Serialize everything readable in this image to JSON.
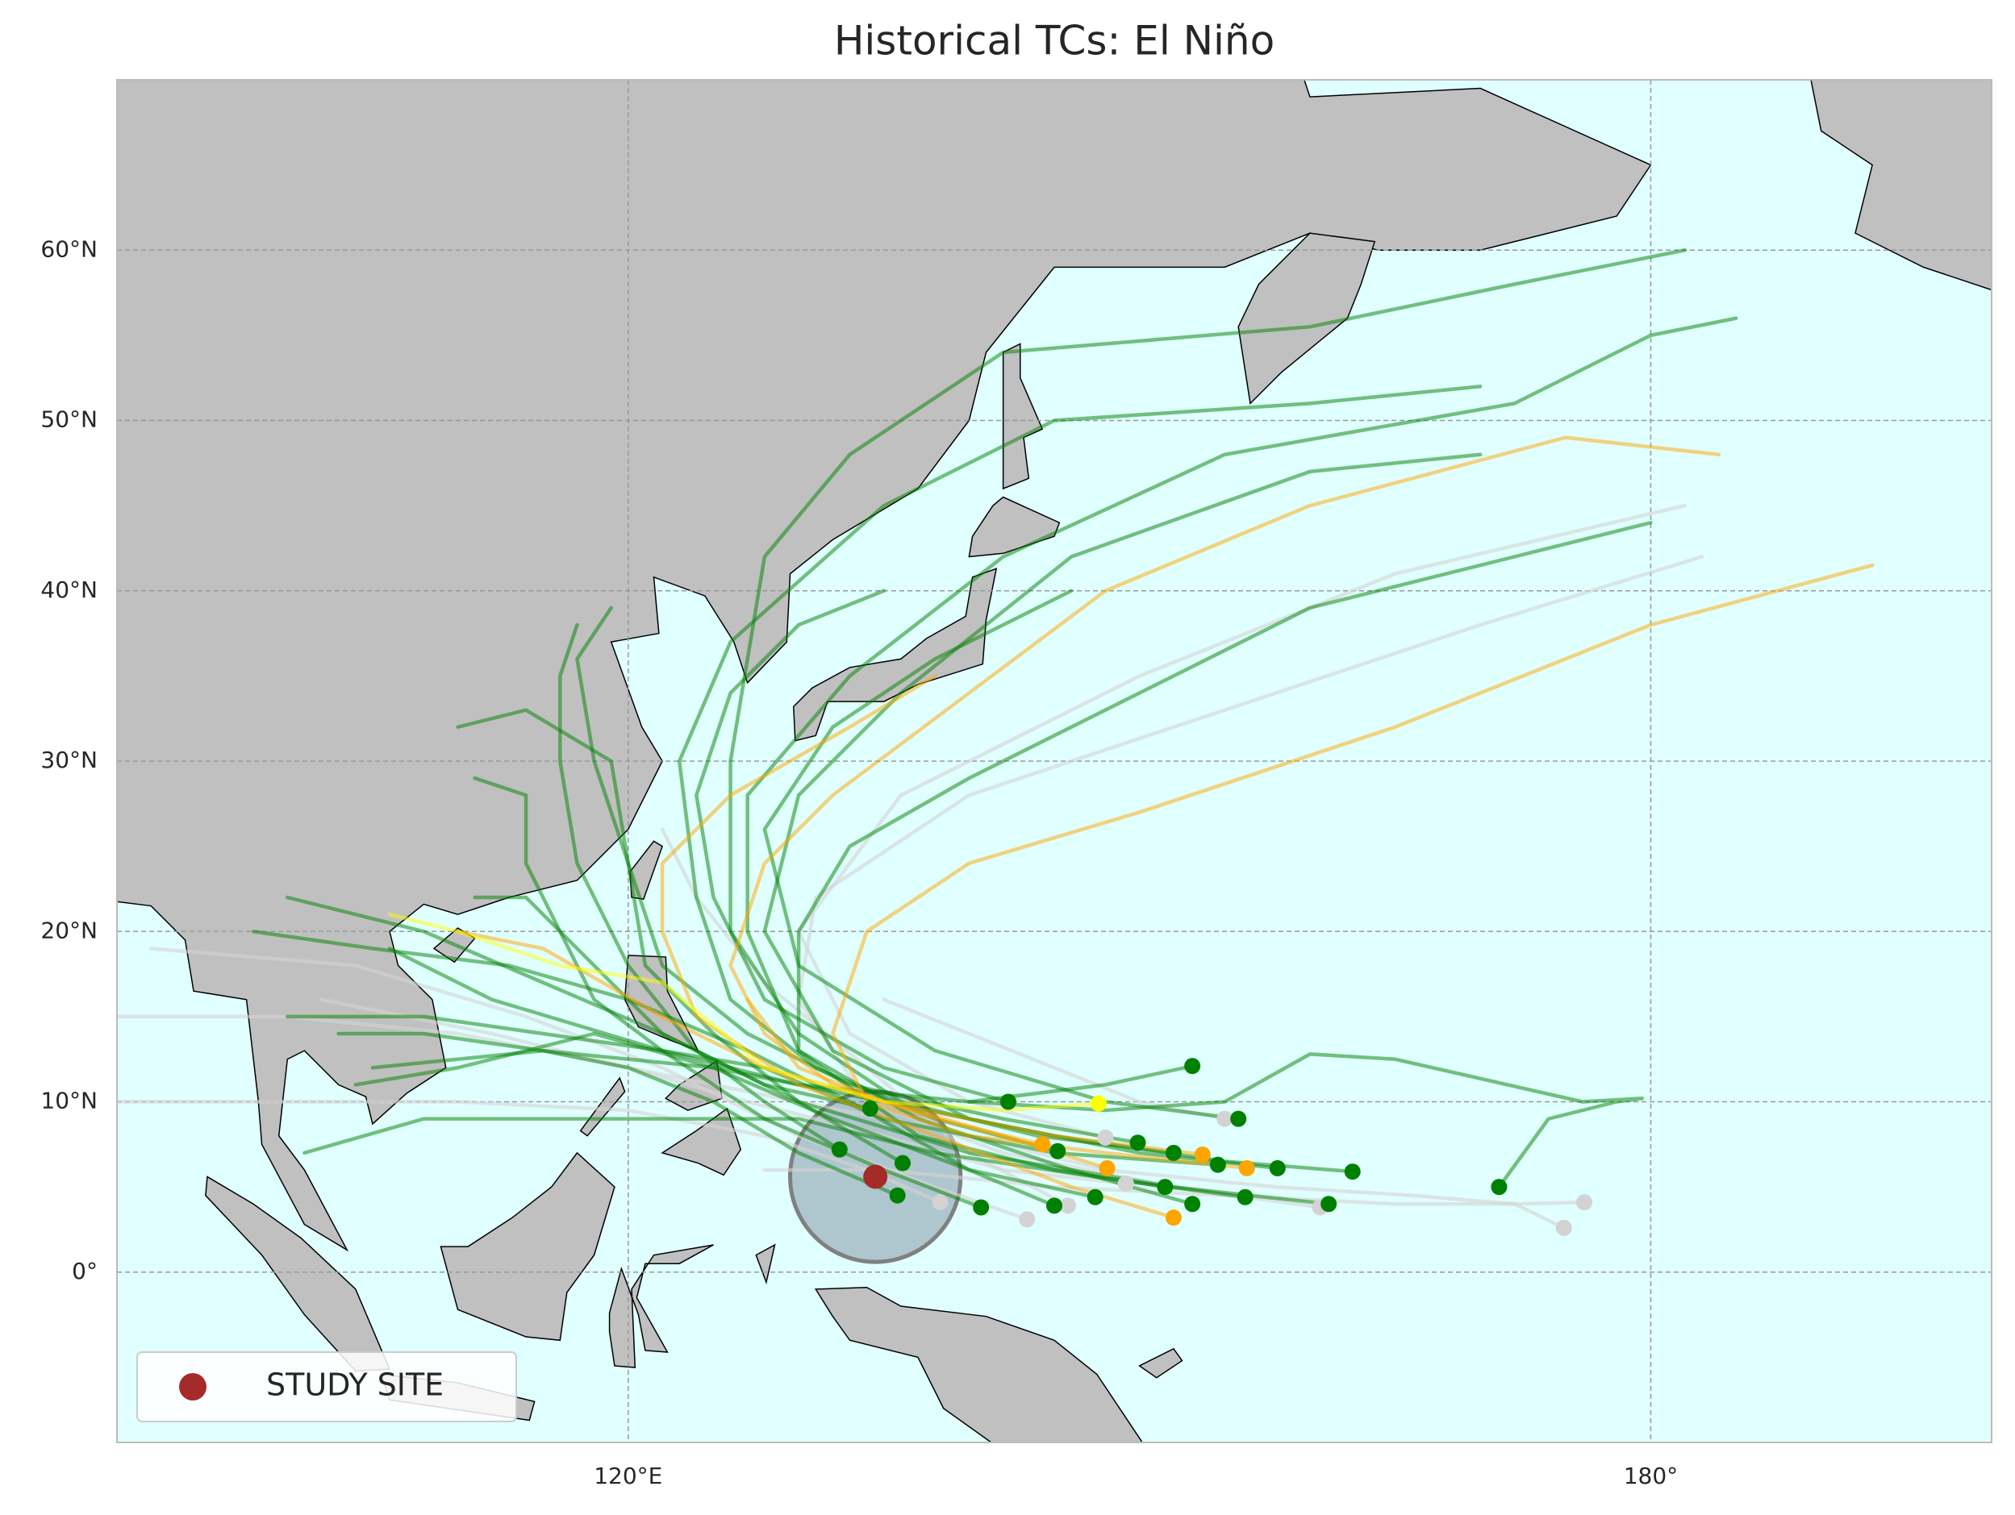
{
  "map_data": {
    "type": "track-map",
    "title": "Historical TCs: El Niño",
    "xlim": [
      90,
      200
    ],
    "ylim": [
      -10,
      70
    ],
    "xticks": [
      {
        "value": 120,
        "label": "120°E"
      },
      {
        "value": 180,
        "label": "180°"
      }
    ],
    "yticks": [
      {
        "value": 0,
        "label": "0°"
      },
      {
        "value": 10,
        "label": "10°N"
      },
      {
        "value": 20,
        "label": "20°N"
      },
      {
        "value": 30,
        "label": "30°N"
      },
      {
        "value": 40,
        "label": "40°N"
      },
      {
        "value": 50,
        "label": "50°N"
      },
      {
        "value": 60,
        "label": "60°N"
      }
    ],
    "grid": true,
    "ocean_color": "#e0ffff",
    "land_color": "#c0c0c0",
    "legend_position": "lower left",
    "study_site": {
      "label": "STUDY SITE",
      "lon": 134.5,
      "lat": 5.6,
      "radius_deg": 5,
      "color": "#a52a2a"
    },
    "tracks": [
      {
        "color": "#d3d3d3",
        "lon": [
          174.9,
          172,
          166,
          158,
          148,
          140,
          130,
          120,
          110,
          100,
          90
        ],
        "lat": [
          2.6,
          4,
          4.5,
          5,
          6,
          8,
          10,
          12,
          14,
          15,
          15
        ]
      },
      {
        "color": "#d3d3d3",
        "lon": [
          176.1,
          172,
          165,
          155,
          145,
          135,
          128
        ],
        "lat": [
          4.1,
          4,
          4,
          4.5,
          5,
          6,
          6
        ]
      },
      {
        "color": "#d3d3d3",
        "lon": [
          160.6,
          152,
          142,
          134,
          130,
          131,
          140,
          155,
          170,
          183
        ],
        "lat": [
          3.8,
          5,
          7,
          10,
          16,
          22,
          28,
          33,
          38,
          42
        ]
      },
      {
        "color": "#d3d3d3",
        "lon": [
          143.4,
          138,
          130,
          122,
          114,
          104,
          92
        ],
        "lat": [
          3.1,
          5,
          8,
          12,
          15,
          18,
          19
        ]
      },
      {
        "color": "#d3d3d3",
        "lon": [
          145.8,
          140,
          134,
          128,
          124,
          122
        ],
        "lat": [
          3.9,
          7,
          12,
          17,
          22,
          26
        ]
      },
      {
        "color": "#d3d3d3",
        "lon": [
          138.3,
          134,
          128,
          120,
          110,
          100,
          90
        ],
        "lat": [
          4.1,
          6,
          8,
          9.5,
          10,
          10,
          10
        ]
      },
      {
        "color": "#d3d3d3",
        "lon": [
          155.0,
          150,
          145,
          140,
          135
        ],
        "lat": [
          9.0,
          10,
          12,
          14,
          16
        ]
      },
      {
        "color": "#d3d3d3",
        "lon": [
          148.0,
          140,
          133,
          130,
          136,
          150,
          165,
          182
        ],
        "lat": [
          7.9,
          10,
          14,
          20,
          28,
          35,
          41,
          45
        ]
      },
      {
        "color": "#d3d3d3",
        "lon": [
          149.2,
          142,
          135,
          127,
          120,
          112,
          102
        ],
        "lat": [
          5.2,
          6,
          8,
          10,
          12,
          14,
          16
        ]
      },
      {
        "color": "#008000",
        "lon": [
          153.1,
          148,
          140,
          130,
          122,
          112,
          106
        ],
        "lat": [
          12.1,
          11,
          10,
          11,
          13,
          16,
          19
        ]
      },
      {
        "color": "#008000",
        "lon": [
          134.2,
          128,
          122,
          118,
          114,
          111
        ],
        "lat": [
          9.6,
          11,
          14,
          18,
          22,
          22
        ]
      },
      {
        "color": "#008000",
        "lon": [
          142.3,
          135,
          128,
          125,
          124,
          126,
          130,
          135
        ],
        "lat": [
          10.0,
          12,
          16,
          22,
          28,
          34,
          38,
          40
        ]
      },
      {
        "color": "#008000",
        "lon": [
          155.8,
          148,
          138,
          130,
          128,
          132,
          138,
          146
        ],
        "lat": [
          9.0,
          10,
          13,
          18,
          26,
          32,
          36,
          40
        ]
      },
      {
        "color": "#008000",
        "lon": [
          162.5,
          155,
          145,
          135,
          125,
          115,
          105
        ],
        "lat": [
          5.9,
          6.5,
          8,
          10,
          12,
          13,
          12
        ]
      },
      {
        "color": "#008000",
        "lon": [
          171.1,
          174,
          178,
          179.5,
          176,
          165,
          160,
          155,
          148,
          140
        ],
        "lat": [
          5.0,
          9,
          10,
          10.2,
          10,
          12.5,
          12.8,
          10,
          9.5,
          10
        ]
      },
      {
        "color": "#008000",
        "lon": [
          158.1,
          150,
          140,
          132,
          128,
          130,
          136,
          146,
          160,
          170
        ],
        "lat": [
          6.1,
          7,
          9,
          13,
          20,
          28,
          34,
          42,
          47,
          48
        ]
      },
      {
        "color": "#008000",
        "lon": [
          161.1,
          152,
          140,
          130,
          122,
          115,
          108,
          100
        ],
        "lat": [
          4.0,
          5,
          7,
          10,
          14,
          17,
          20,
          22
        ]
      },
      {
        "color": "#008000",
        "lon": [
          151.5,
          145,
          137,
          130,
          127,
          127,
          133,
          142,
          155,
          172,
          180,
          185
        ],
        "lat": [
          5.0,
          6,
          8,
          13,
          20,
          28,
          35,
          42,
          48,
          51,
          55,
          56
        ]
      },
      {
        "color": "#008000",
        "lon": [
          147.4,
          140,
          132,
          125,
          118,
          110,
          104
        ],
        "lat": [
          4.4,
          6,
          9,
          12,
          14,
          12,
          11
        ]
      },
      {
        "color": "#008000",
        "lon": [
          140.7,
          135,
          128,
          122,
          118,
          116,
          114,
          114,
          111
        ],
        "lat": [
          3.8,
          6,
          9,
          13,
          16,
          20,
          24,
          28,
          29
        ]
      },
      {
        "color": "#008000",
        "lon": [
          135.8,
          130,
          125,
          120,
          115,
          108,
          103
        ],
        "lat": [
          4.5,
          7,
          10,
          12,
          13,
          14,
          14
        ]
      },
      {
        "color": "#008000",
        "lon": [
          136.1,
          130,
          125,
          121,
          120,
          118,
          117,
          119
        ],
        "lat": [
          6.4,
          10,
          14,
          18,
          24,
          30,
          36,
          39
        ]
      },
      {
        "color": "#008000",
        "lon": [
          145.2,
          138,
          131,
          126,
          124,
          123,
          126,
          135,
          145,
          160,
          170
        ],
        "lat": [
          7.1,
          9,
          12,
          16,
          22,
          30,
          37,
          45,
          50,
          51,
          52
        ]
      },
      {
        "color": "#008000",
        "lon": [
          149.9,
          142,
          133,
          127,
          122,
          120,
          119,
          114,
          110
        ],
        "lat": [
          7.6,
          9,
          11,
          14,
          18,
          24,
          30,
          33,
          32
        ]
      },
      {
        "color": "#008000",
        "lon": [
          154.6,
          145,
          135,
          128,
          122,
          115,
          108,
          100
        ],
        "lat": [
          6.3,
          7,
          9,
          12,
          13,
          14,
          15,
          15
        ]
      },
      {
        "color": "#008000",
        "lon": [
          156.2,
          148,
          138,
          130,
          124,
          116,
          108,
          101
        ],
        "lat": [
          4.4,
          5.5,
          7,
          9,
          9,
          9,
          9,
          7
        ]
      },
      {
        "color": "#008000",
        "lon": [
          153.1,
          146,
          137,
          130,
          130,
          133,
          140,
          150,
          160,
          172,
          180
        ],
        "lat": [
          4.0,
          6,
          9,
          13,
          20,
          25,
          29,
          34,
          39,
          42,
          44
        ]
      },
      {
        "color": "#008000",
        "lon": [
          145.0,
          140,
          133,
          127,
          120,
          113,
          105,
          98
        ],
        "lat": [
          3.9,
          6,
          10,
          13,
          16,
          18,
          19,
          20
        ]
      },
      {
        "color": "#008000",
        "lon": [
          132.4,
          128,
          124,
          120,
          117,
          116,
          116,
          117
        ],
        "lat": [
          7.2,
          10,
          13,
          18,
          24,
          30,
          35,
          38
        ]
      },
      {
        "color": "#008000",
        "lon": [
          152.0,
          144,
          136,
          130,
          126,
          126,
          128,
          133,
          142,
          160,
          172,
          182
        ],
        "lat": [
          7.0,
          8,
          10,
          14,
          20,
          30,
          42,
          48,
          54,
          55.5,
          58,
          60
        ]
      },
      {
        "color": "#ffa500",
        "lon": [
          144.3,
          138,
          132,
          128,
          126,
          128,
          132,
          140,
          148,
          160,
          175,
          184
        ],
        "lat": [
          7.5,
          9,
          11,
          14,
          18,
          24,
          28,
          34,
          40,
          45,
          49,
          48
        ]
      },
      {
        "color": "#ffa500",
        "lon": [
          153.7,
          145,
          135,
          128,
          122,
          115,
          110
        ],
        "lat": [
          6.9,
          8,
          10,
          12,
          15,
          19,
          20
        ]
      },
      {
        "color": "#ffa500",
        "lon": [
          156.3,
          148,
          140,
          134,
          132,
          134,
          140,
          150,
          165,
          180,
          193
        ],
        "lat": [
          6.1,
          7,
          8,
          10,
          14,
          20,
          24,
          27,
          32,
          38,
          41.5
        ]
      },
      {
        "color": "#ffa500",
        "lon": [
          152.0,
          146,
          138,
          130,
          124,
          122,
          122,
          126,
          133,
          138
        ],
        "lat": [
          3.2,
          5,
          8,
          11,
          15,
          20,
          24,
          28,
          32,
          35
        ]
      },
      {
        "color": "#ffa500",
        "lon": [
          148.1,
          142,
          135,
          130,
          127
        ],
        "lat": [
          6.1,
          8,
          10,
          12,
          16
        ]
      },
      {
        "color": "#ffff00",
        "lon": [
          147.6,
          142,
          135,
          128,
          122,
          116,
          110,
          106
        ],
        "lat": [
          9.9,
          9.5,
          10,
          12,
          17,
          18,
          20,
          21
        ]
      }
    ]
  }
}
